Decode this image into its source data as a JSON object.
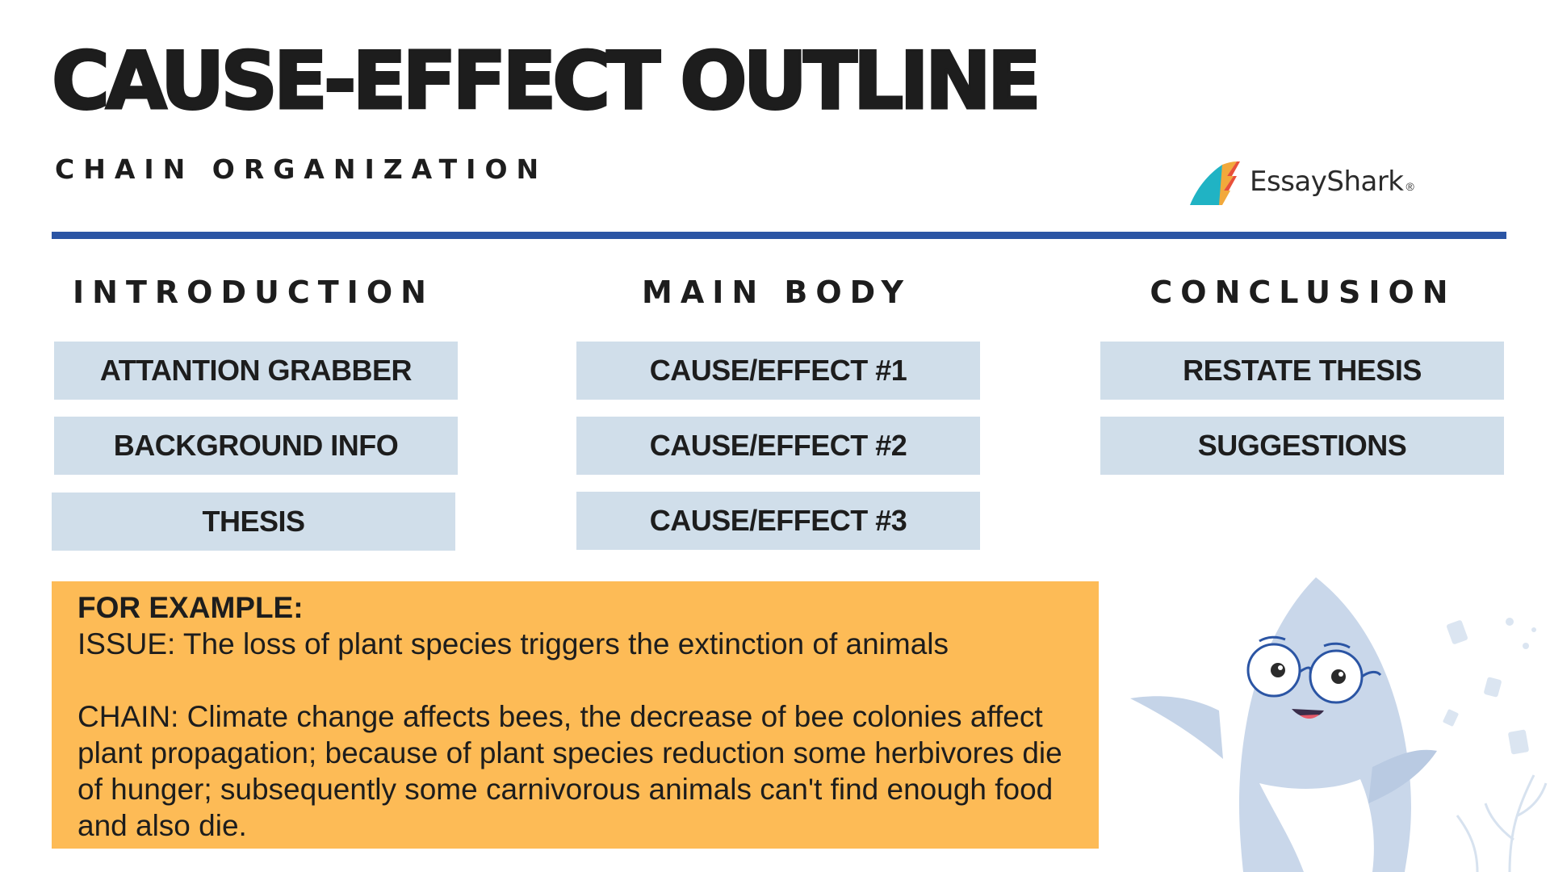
{
  "header": {
    "title": "CAUSE-EFFECT OUTLINE",
    "subtitle": "CHAIN ORGANIZATION"
  },
  "logo": {
    "name": "EssayShark",
    "reg": "®",
    "colors": [
      "#20b3c4",
      "#f2a93b",
      "#e8503a"
    ]
  },
  "accent_color": "#2b55a4",
  "columns": [
    {
      "heading": "INTRODUCTION",
      "items": [
        "ATTANTION GRABBER",
        "BACKGROUND INFO",
        "THESIS"
      ]
    },
    {
      "heading": "MAIN BODY",
      "items": [
        "CAUSE/EFFECT #1",
        "CAUSE/EFFECT #2",
        "CAUSE/EFFECT #3"
      ]
    },
    {
      "heading": "CONCLUSION",
      "items": [
        "RESTATE THESIS",
        "SUGGESTIONS"
      ]
    }
  ],
  "box_color": "#d0deea",
  "example": {
    "label": "FOR EXAMPLE:",
    "issue": "ISSUE: The loss of plant species triggers the extinction of animals",
    "chain": "CHAIN: Climate change affects bees, the decrease of bee colonies affect plant propagation; because of plant species reduction some herbivores die of hunger; subsequently some carnivorous animals can't find enough food and also die.",
    "background": "#fdbb56"
  },
  "mascot": {
    "icon": "shark-mascot-icon"
  }
}
